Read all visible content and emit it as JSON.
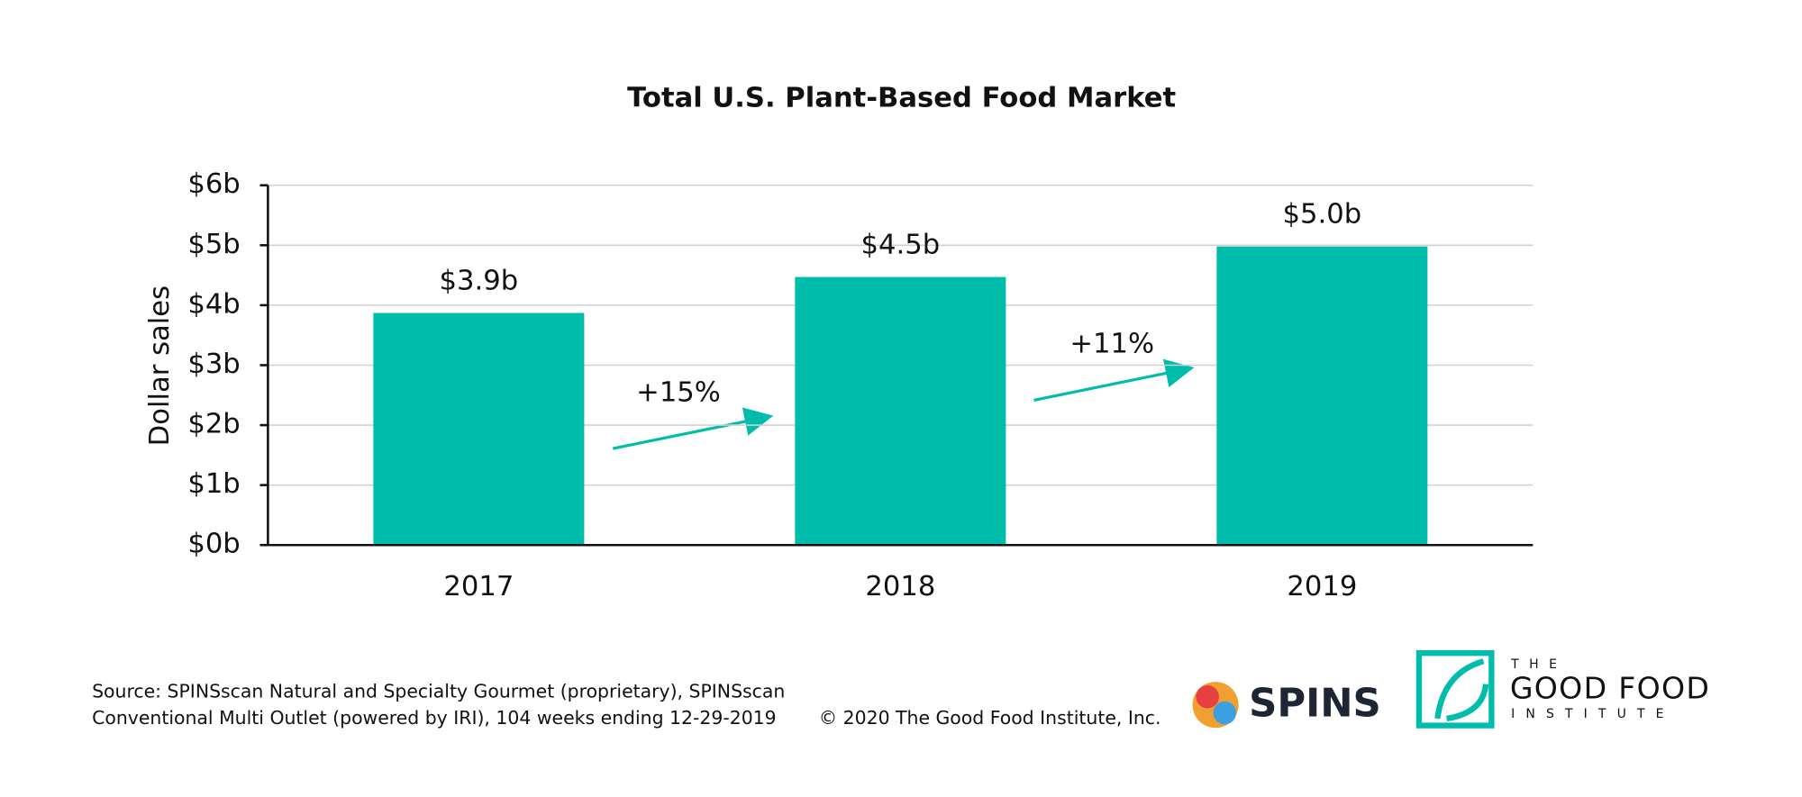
{
  "chart_data": {
    "type": "bar",
    "title": "Total U.S. Plant-Based Food Market",
    "y_axis_label": "Dollar sales",
    "categories": [
      "2017",
      "2018",
      "2019"
    ],
    "values": [
      3.87,
      4.47,
      4.98
    ],
    "value_labels": [
      "$3.9b",
      "$4.5b",
      "$5.0b"
    ],
    "color": "#00bcaa",
    "ylim": [
      0,
      6
    ],
    "yticks": [
      {
        "value": 0,
        "label": "$0b"
      },
      {
        "value": 1,
        "label": "$1b"
      },
      {
        "value": 2,
        "label": "$2b"
      },
      {
        "value": 3,
        "label": "$3b"
      },
      {
        "value": 4,
        "label": "$4b"
      },
      {
        "value": 5,
        "label": "$5b"
      },
      {
        "value": 6,
        "label": "$6b"
      }
    ],
    "grid": true,
    "annotations": [
      "+15%",
      "+11%"
    ]
  },
  "footer": {
    "source": [
      "Source: SPINSscan Natural and Specialty Gourmet (proprietary), SPINSscan",
      "Conventional Multi Outlet (powered by IRI), 104 weeks ending 12-29-2019"
    ],
    "copyright": "© 2020 The Good Food Institute, Inc."
  },
  "logos": {
    "spins": "SPINS",
    "gfi": [
      "THE",
      "GOOD FOOD",
      "INSTITUTE"
    ]
  }
}
